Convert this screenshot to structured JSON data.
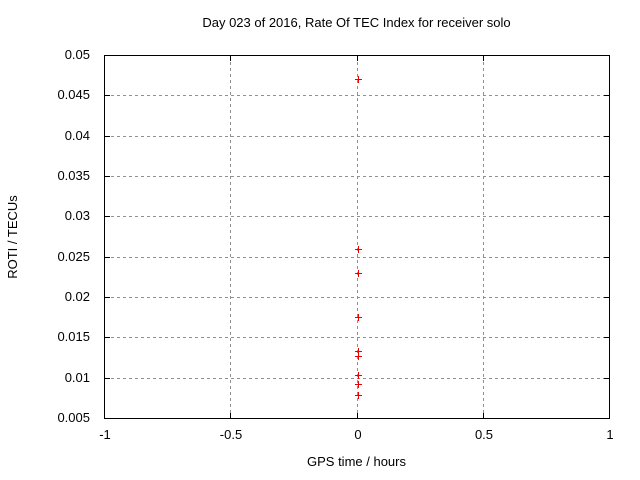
{
  "chart_data": {
    "type": "scatter",
    "title": "Day 023 of 2016, Rate Of TEC Index for receiver solo",
    "xlabel": "GPS time / hours",
    "ylabel": "ROTI / TECUs",
    "xlim": [
      -1,
      1
    ],
    "ylim": [
      0.005,
      0.05
    ],
    "x_ticks": [
      {
        "value": -1,
        "label": "-1"
      },
      {
        "value": -0.5,
        "label": "-0.5"
      },
      {
        "value": 0,
        "label": "0"
      },
      {
        "value": 0.5,
        "label": "0.5"
      },
      {
        "value": 1,
        "label": "1"
      }
    ],
    "y_ticks": [
      {
        "value": 0.005,
        "label": "0.005"
      },
      {
        "value": 0.01,
        "label": "0.01"
      },
      {
        "value": 0.015,
        "label": "0.015"
      },
      {
        "value": 0.02,
        "label": "0.02"
      },
      {
        "value": 0.025,
        "label": "0.025"
      },
      {
        "value": 0.03,
        "label": "0.03"
      },
      {
        "value": 0.035,
        "label": "0.035"
      },
      {
        "value": 0.04,
        "label": "0.04"
      },
      {
        "value": 0.045,
        "label": "0.045"
      },
      {
        "value": 0.05,
        "label": "0.05"
      }
    ],
    "grid": true,
    "legend": "none",
    "marker": "plus",
    "series": [
      {
        "name": "ROTI",
        "color": "#ee0000",
        "points": [
          {
            "x": 0,
            "y": 0.047
          },
          {
            "x": 0,
            "y": 0.026
          },
          {
            "x": 0,
            "y": 0.023
          },
          {
            "x": 0,
            "y": 0.0175
          },
          {
            "x": 0,
            "y": 0.0133
          },
          {
            "x": 0,
            "y": 0.0127
          },
          {
            "x": 0,
            "y": 0.0103
          },
          {
            "x": 0,
            "y": 0.0092
          },
          {
            "x": 0,
            "y": 0.0079
          }
        ]
      }
    ],
    "colors": {
      "background": "#ffffff",
      "grid": "#909090",
      "axis": "#000000",
      "text": "#000000",
      "marker": "#ee0000"
    }
  }
}
